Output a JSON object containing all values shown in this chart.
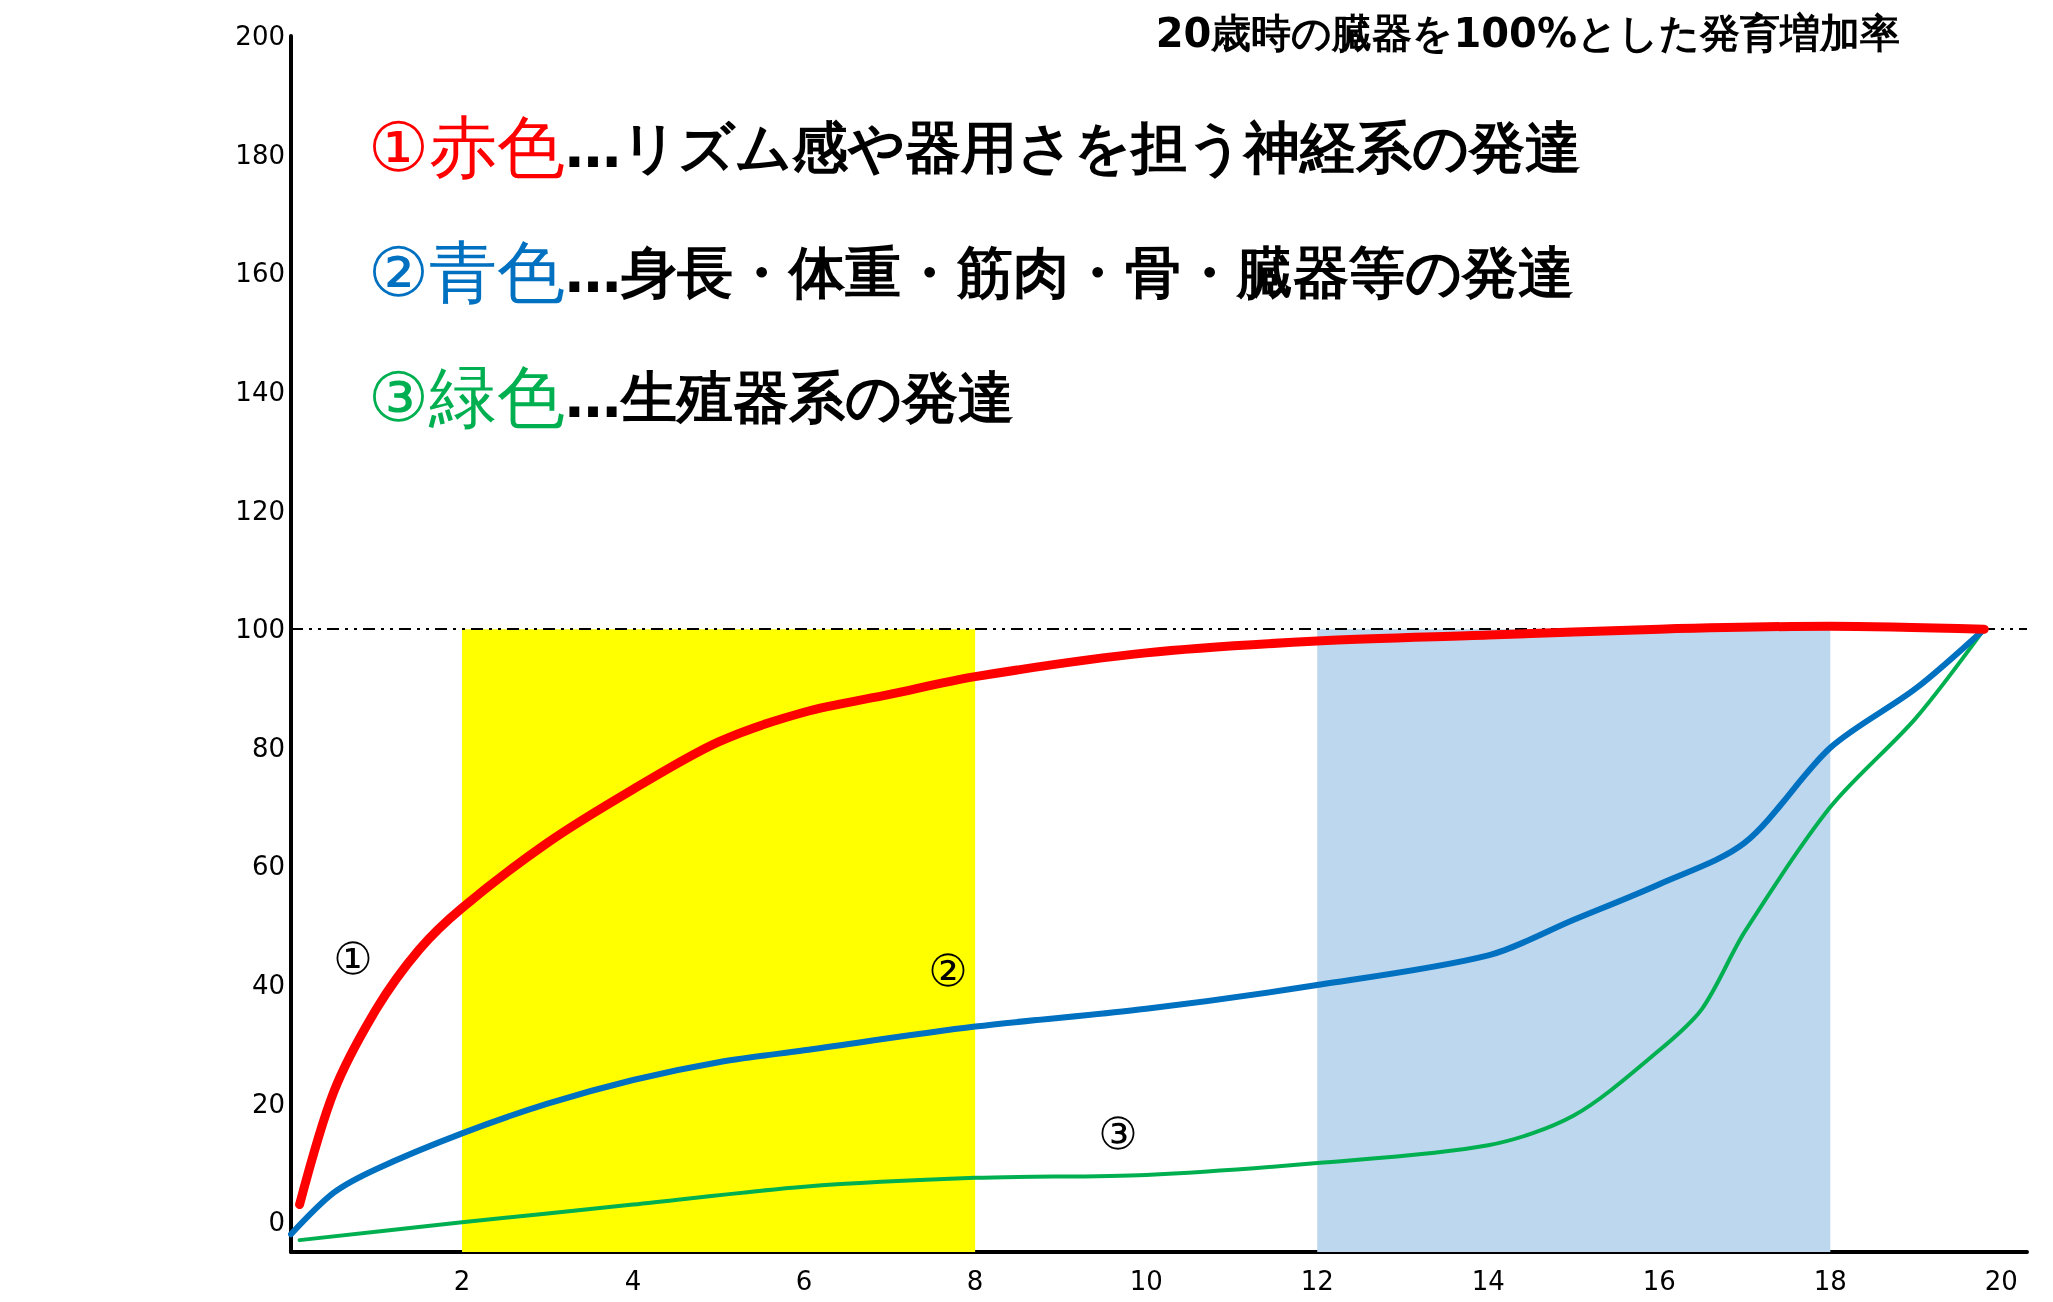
{
  "chart_data": {
    "type": "line",
    "title": "20歳時の臓器を100%とした発育増加率",
    "xlim": [
      0,
      20.3
    ],
    "xticks": [
      2,
      4,
      6,
      8,
      10,
      12,
      14,
      16,
      18,
      20
    ],
    "ylim": [
      -5,
      200
    ],
    "yticks": [
      0,
      20,
      40,
      60,
      80,
      100,
      120,
      140,
      160,
      180,
      200
    ],
    "grid": false,
    "legend": "top left",
    "marker": "none",
    "line_style": "solid",
    "series": [
      {
        "name": "①赤色",
        "color": "#ff0000",
        "x": [
          0.1,
          0.5,
          1,
          1.5,
          2,
          3,
          4,
          5,
          6,
          7,
          8,
          10,
          12,
          14,
          16,
          18,
          19.8
        ],
        "values": [
          3,
          22,
          36,
          46,
          53,
          64,
          73,
          81,
          86,
          89,
          92,
          96,
          98,
          99,
          100,
          100.5,
          100
        ]
      },
      {
        "name": "②青色",
        "color": "#0070c0",
        "x": [
          0,
          0.5,
          1,
          2,
          3,
          4,
          5,
          6,
          8,
          10,
          12,
          14,
          15,
          16,
          17,
          18,
          19,
          19.8
        ],
        "values": [
          -2,
          5,
          9,
          15,
          20,
          24,
          27,
          29,
          33,
          36,
          40,
          45,
          51,
          57,
          64,
          80,
          90,
          100
        ]
      },
      {
        "name": "③緑色",
        "color": "#00b050",
        "x": [
          0.1,
          2,
          4,
          6,
          8,
          10,
          12,
          14,
          15,
          16,
          16.5,
          17,
          18,
          19,
          19.8
        ],
        "values": [
          -3,
          0,
          3,
          6,
          7.5,
          8,
          10,
          13,
          18,
          29,
          36,
          49,
          70,
          85,
          100
        ]
      }
    ],
    "ref_lines": [
      {
        "axis": "y",
        "value": 100,
        "color": "#000000",
        "line_style": "dashed"
      }
    ],
    "bands": [
      {
        "axis": "x",
        "from": 2,
        "to": 8,
        "color": "#ffff00"
      },
      {
        "axis": "x",
        "from": 12,
        "to": 18,
        "color": "#bdd7ee"
      }
    ],
    "annotations": [
      "…リズム感や器用さを担う神経系の発達",
      "…身長・体重・筋肉・骨・臓器等の発達",
      "…生殖器系の発達",
      "①",
      "②",
      "③"
    ]
  }
}
